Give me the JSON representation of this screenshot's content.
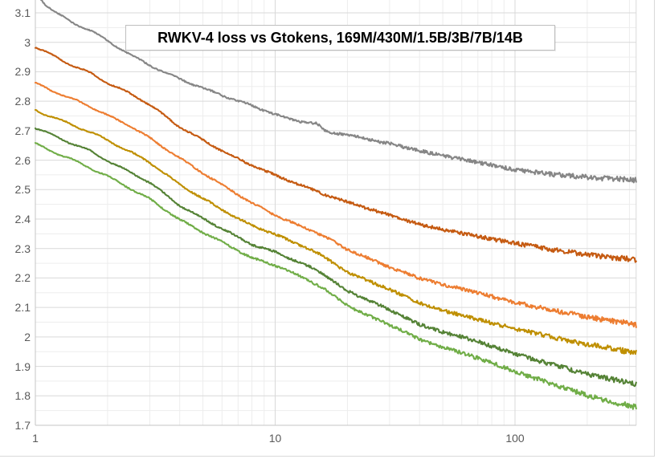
{
  "chart_data": {
    "type": "line",
    "title": "RWKV-4 loss vs Gtokens, 169M/430M/1.5B/3B/7B/14B",
    "xlabel": "",
    "ylabel": "",
    "x_scale": "log",
    "xlim": [
      1,
      320
    ],
    "ylim": [
      1.7,
      3.1
    ],
    "grid": "major and minor, light gray",
    "legend_position": "none (model sizes listed in title)",
    "x_ticks": [
      "1",
      "10",
      "100"
    ],
    "x_tick_values": [
      1,
      10,
      100
    ],
    "y_ticks": [
      "3.1",
      "3",
      "2.9",
      "2.8",
      "2.7",
      "2.6",
      "2.5",
      "2.4",
      "2.3",
      "2.2",
      "2.1",
      "2",
      "1.9",
      "1.8",
      "1.7"
    ],
    "y_tick_values": [
      3.1,
      3.0,
      2.9,
      2.8,
      2.7,
      2.6,
      2.5,
      2.4,
      2.3,
      2.2,
      2.1,
      2.0,
      1.9,
      1.8,
      1.7
    ],
    "series": [
      {
        "name": "169M",
        "color": "#868686",
        "points": [
          [
            1.0,
            3.17
          ],
          [
            1.1,
            3.13
          ],
          [
            1.22,
            3.1
          ],
          [
            1.4,
            3.07
          ],
          [
            1.7,
            3.04
          ],
          [
            2,
            3.005
          ],
          [
            2.5,
            2.957
          ],
          [
            3,
            2.922
          ],
          [
            4,
            2.875
          ],
          [
            5,
            2.845
          ],
          [
            6,
            2.82
          ],
          [
            8,
            2.785
          ],
          [
            10,
            2.755
          ],
          [
            12,
            2.735
          ],
          [
            14,
            2.727
          ],
          [
            15,
            2.723
          ],
          [
            16,
            2.701
          ],
          [
            17,
            2.694
          ],
          [
            20,
            2.686
          ],
          [
            25,
            2.669
          ],
          [
            30,
            2.656
          ],
          [
            40,
            2.632
          ],
          [
            50,
            2.615
          ],
          [
            60,
            2.603
          ],
          [
            80,
            2.583
          ],
          [
            100,
            2.568
          ],
          [
            130,
            2.556
          ],
          [
            160,
            2.548
          ],
          [
            200,
            2.542
          ],
          [
            250,
            2.537
          ],
          [
            320,
            2.533
          ]
        ]
      },
      {
        "name": "430M",
        "color": "#C55A11",
        "points": [
          [
            1,
            2.985
          ],
          [
            1.2,
            2.952
          ],
          [
            1.4,
            2.925
          ],
          [
            1.7,
            2.895
          ],
          [
            2,
            2.862
          ],
          [
            2.5,
            2.825
          ],
          [
            3,
            2.788
          ],
          [
            3.5,
            2.748
          ],
          [
            4,
            2.712
          ],
          [
            5,
            2.668
          ],
          [
            6,
            2.632
          ],
          [
            7,
            2.605
          ],
          [
            8,
            2.582
          ],
          [
            10,
            2.549
          ],
          [
            12,
            2.523
          ],
          [
            14,
            2.503
          ],
          [
            16,
            2.484
          ],
          [
            20,
            2.458
          ],
          [
            25,
            2.433
          ],
          [
            30,
            2.413
          ],
          [
            40,
            2.382
          ],
          [
            50,
            2.364
          ],
          [
            60,
            2.352
          ],
          [
            80,
            2.332
          ],
          [
            100,
            2.318
          ],
          [
            130,
            2.302
          ],
          [
            160,
            2.29
          ],
          [
            200,
            2.279
          ],
          [
            250,
            2.27
          ],
          [
            320,
            2.263
          ]
        ]
      },
      {
        "name": "1.5B",
        "color": "#ED7D31",
        "points": [
          [
            1,
            2.86
          ],
          [
            1.2,
            2.833
          ],
          [
            1.4,
            2.81
          ],
          [
            1.7,
            2.782
          ],
          [
            2,
            2.752
          ],
          [
            2.5,
            2.715
          ],
          [
            3,
            2.675
          ],
          [
            3.5,
            2.638
          ],
          [
            4,
            2.607
          ],
          [
            5,
            2.556
          ],
          [
            6,
            2.516
          ],
          [
            7,
            2.483
          ],
          [
            8,
            2.455
          ],
          [
            10,
            2.413
          ],
          [
            12,
            2.385
          ],
          [
            14,
            2.363
          ],
          [
            16,
            2.342
          ],
          [
            20,
            2.296
          ],
          [
            25,
            2.264
          ],
          [
            30,
            2.237
          ],
          [
            40,
            2.199
          ],
          [
            50,
            2.177
          ],
          [
            60,
            2.163
          ],
          [
            80,
            2.137
          ],
          [
            100,
            2.118
          ],
          [
            130,
            2.098
          ],
          [
            160,
            2.083
          ],
          [
            200,
            2.068
          ],
          [
            250,
            2.055
          ],
          [
            320,
            2.042
          ]
        ]
      },
      {
        "name": "3B",
        "color": "#BF8F00",
        "points": [
          [
            1,
            2.77
          ],
          [
            1.2,
            2.744
          ],
          [
            1.4,
            2.722
          ],
          [
            1.7,
            2.695
          ],
          [
            2,
            2.667
          ],
          [
            2.5,
            2.627
          ],
          [
            3,
            2.592
          ],
          [
            3.5,
            2.552
          ],
          [
            4,
            2.517
          ],
          [
            5,
            2.47
          ],
          [
            6,
            2.432
          ],
          [
            7,
            2.402
          ],
          [
            8,
            2.378
          ],
          [
            10,
            2.348
          ],
          [
            12,
            2.32
          ],
          [
            14,
            2.297
          ],
          [
            16,
            2.272
          ],
          [
            20,
            2.219
          ],
          [
            25,
            2.188
          ],
          [
            30,
            2.161
          ],
          [
            40,
            2.115
          ],
          [
            50,
            2.09
          ],
          [
            60,
            2.073
          ],
          [
            80,
            2.047
          ],
          [
            100,
            2.028
          ],
          [
            130,
            2.007
          ],
          [
            160,
            1.99
          ],
          [
            200,
            1.975
          ],
          [
            250,
            1.961
          ],
          [
            320,
            1.946
          ]
        ]
      },
      {
        "name": "7B",
        "color": "#548235",
        "points": [
          [
            1,
            2.71
          ],
          [
            1.2,
            2.682
          ],
          [
            1.4,
            2.659
          ],
          [
            1.7,
            2.63
          ],
          [
            2,
            2.598
          ],
          [
            2.5,
            2.558
          ],
          [
            3,
            2.524
          ],
          [
            3.5,
            2.482
          ],
          [
            4,
            2.446
          ],
          [
            5,
            2.402
          ],
          [
            6,
            2.368
          ],
          [
            7,
            2.338
          ],
          [
            8,
            2.314
          ],
          [
            10,
            2.288
          ],
          [
            12,
            2.26
          ],
          [
            14,
            2.237
          ],
          [
            16,
            2.212
          ],
          [
            20,
            2.156
          ],
          [
            25,
            2.121
          ],
          [
            30,
            2.092
          ],
          [
            40,
            2.042
          ],
          [
            50,
            2.017
          ],
          [
            60,
            2.0
          ],
          [
            80,
            1.969
          ],
          [
            100,
            1.943
          ],
          [
            130,
            1.916
          ],
          [
            160,
            1.895
          ],
          [
            200,
            1.875
          ],
          [
            250,
            1.857
          ],
          [
            320,
            1.841
          ]
        ]
      },
      {
        "name": "14B",
        "color": "#70AD47",
        "points": [
          [
            1,
            2.655
          ],
          [
            1.2,
            2.627
          ],
          [
            1.4,
            2.604
          ],
          [
            1.7,
            2.573
          ],
          [
            2,
            2.545
          ],
          [
            2.5,
            2.503
          ],
          [
            3,
            2.468
          ],
          [
            3.5,
            2.43
          ],
          [
            4,
            2.398
          ],
          [
            5,
            2.355
          ],
          [
            6,
            2.322
          ],
          [
            7,
            2.293
          ],
          [
            8,
            2.268
          ],
          [
            10,
            2.243
          ],
          [
            12,
            2.215
          ],
          [
            14,
            2.19
          ],
          [
            16,
            2.163
          ],
          [
            20,
            2.106
          ],
          [
            25,
            2.069
          ],
          [
            30,
            2.041
          ],
          [
            40,
            1.992
          ],
          [
            50,
            1.965
          ],
          [
            60,
            1.946
          ],
          [
            80,
            1.912
          ],
          [
            100,
            1.883
          ],
          [
            130,
            1.852
          ],
          [
            160,
            1.827
          ],
          [
            200,
            1.802
          ],
          [
            250,
            1.78
          ],
          [
            320,
            1.762
          ]
        ]
      }
    ]
  },
  "colors": {
    "background": "#ffffff",
    "gridline_major": "#d9d9d9",
    "gridline_minor": "#ededed",
    "axis_line": "#c6c6c6",
    "axis_label_text": "#595959",
    "title_text": "#000000",
    "title_box_border": "#bfbfbf",
    "chart_frame": "#d9d9d9"
  }
}
